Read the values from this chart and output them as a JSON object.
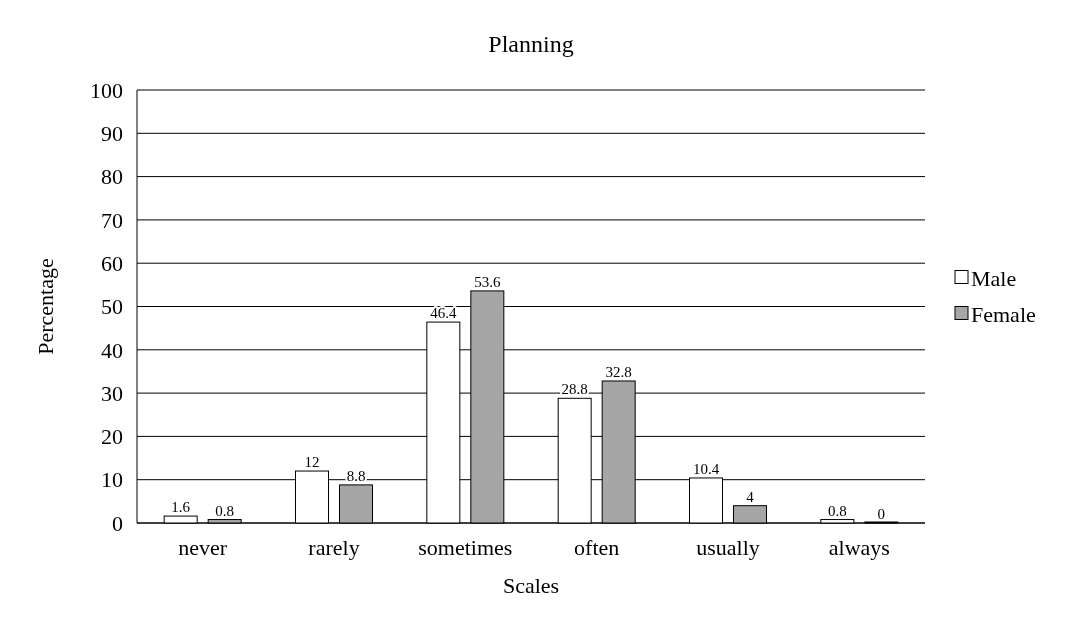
{
  "chart_data": {
    "type": "bar",
    "title": "Planning",
    "xlabel": "Scales",
    "ylabel": "Percentage",
    "categories": [
      "never",
      "rarely",
      "sometimes",
      "often",
      "usually",
      "always"
    ],
    "series": [
      {
        "name": "Male",
        "color": "#ffffff",
        "values": [
          1.6,
          12,
          46.4,
          28.8,
          10.4,
          0.8
        ]
      },
      {
        "name": "Female",
        "color": "#a6a6a6",
        "values": [
          0.8,
          8.8,
          53.6,
          32.8,
          4,
          0
        ]
      }
    ],
    "ylim": [
      0,
      100
    ],
    "yticks": [
      0,
      10,
      20,
      30,
      40,
      50,
      60,
      70,
      80,
      90,
      100
    ],
    "grid": "y",
    "legend": "right",
    "data_labels": true
  }
}
